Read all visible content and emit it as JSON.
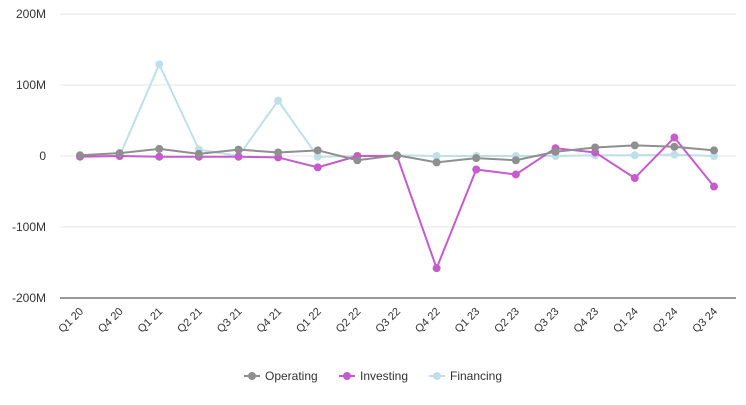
{
  "colors": {
    "operating": "#8f8f8f",
    "investing": "#c65bcc",
    "financing": "#bfe0e8",
    "grid": "#e6e6e6",
    "axis": "#333333",
    "text": "#333333"
  },
  "chart_data": {
    "type": "line",
    "title": "",
    "xlabel": "",
    "ylabel": "",
    "ylim": [
      -200000000,
      200000000
    ],
    "y_ticks": [
      {
        "value": 200000000,
        "label": "200M"
      },
      {
        "value": 100000000,
        "label": "100M"
      },
      {
        "value": 0,
        "label": "0"
      },
      {
        "value": -100000000,
        "label": "-100M"
      },
      {
        "value": -200000000,
        "label": "-200M"
      }
    ],
    "categories": [
      "Q1 20",
      "Q4 20",
      "Q1 21",
      "Q2 21",
      "Q3 21",
      "Q4 21",
      "Q1 22",
      "Q2 22",
      "Q3 22",
      "Q4 22",
      "Q1 23",
      "Q2 23",
      "Q3 23",
      "Q4 23",
      "Q1 24",
      "Q2 24",
      "Q3 24"
    ],
    "grid": true,
    "legend_position": "bottom-center",
    "series": [
      {
        "key": "operating",
        "name": "Operating",
        "values": [
          1000000,
          4000000,
          10000000,
          3000000,
          9000000,
          5000000,
          8000000,
          -6000000,
          1000000,
          -9000000,
          -3000000,
          -6000000,
          6000000,
          12000000,
          15000000,
          13000000,
          8000000
        ]
      },
      {
        "key": "investing",
        "name": "Investing",
        "values": [
          -1000000,
          0,
          -1000000,
          -1000000,
          -1000000,
          -2000000,
          -16000000,
          0,
          0,
          -158000000,
          -19000000,
          -26000000,
          11000000,
          5000000,
          -31000000,
          26000000,
          -43000000
        ]
      },
      {
        "key": "financing",
        "name": "Financing",
        "values": [
          0,
          0,
          129000000,
          9000000,
          0,
          78000000,
          -1000000,
          0,
          1000000,
          0,
          0,
          0,
          0,
          1000000,
          1000000,
          2000000,
          0
        ]
      }
    ]
  }
}
